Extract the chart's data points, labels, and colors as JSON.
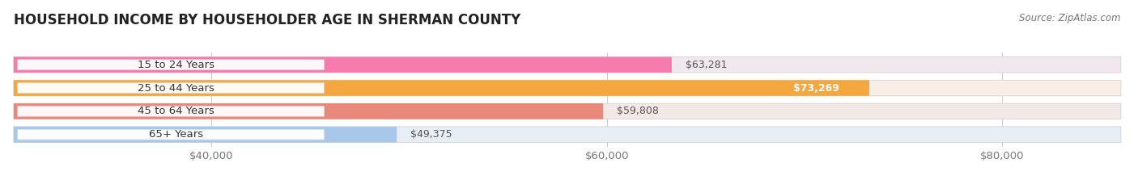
{
  "title": "HOUSEHOLD INCOME BY HOUSEHOLDER AGE IN SHERMAN COUNTY",
  "source": "Source: ZipAtlas.com",
  "categories": [
    "15 to 24 Years",
    "25 to 44 Years",
    "45 to 64 Years",
    "65+ Years"
  ],
  "values": [
    63281,
    73269,
    59808,
    49375
  ],
  "bar_colors": [
    "#F87BAD",
    "#F5A840",
    "#E8897C",
    "#A8C8EA"
  ],
  "bar_bg_colors": [
    "#F0E8EC",
    "#F8EEE6",
    "#F2E8E6",
    "#E8EEF6"
  ],
  "value_labels": [
    "$63,281",
    "$73,269",
    "$59,808",
    "$49,375"
  ],
  "value_colors": [
    "#555555",
    "#FFFFFF",
    "#555555",
    "#555555"
  ],
  "xlim_min": 30000,
  "xlim_max": 86000,
  "x_ticks": [
    40000,
    60000,
    80000
  ],
  "x_tick_labels": [
    "$40,000",
    "$60,000",
    "$80,000"
  ],
  "title_fontsize": 12,
  "label_fontsize": 9.5,
  "value_fontsize": 9,
  "source_fontsize": 8.5
}
